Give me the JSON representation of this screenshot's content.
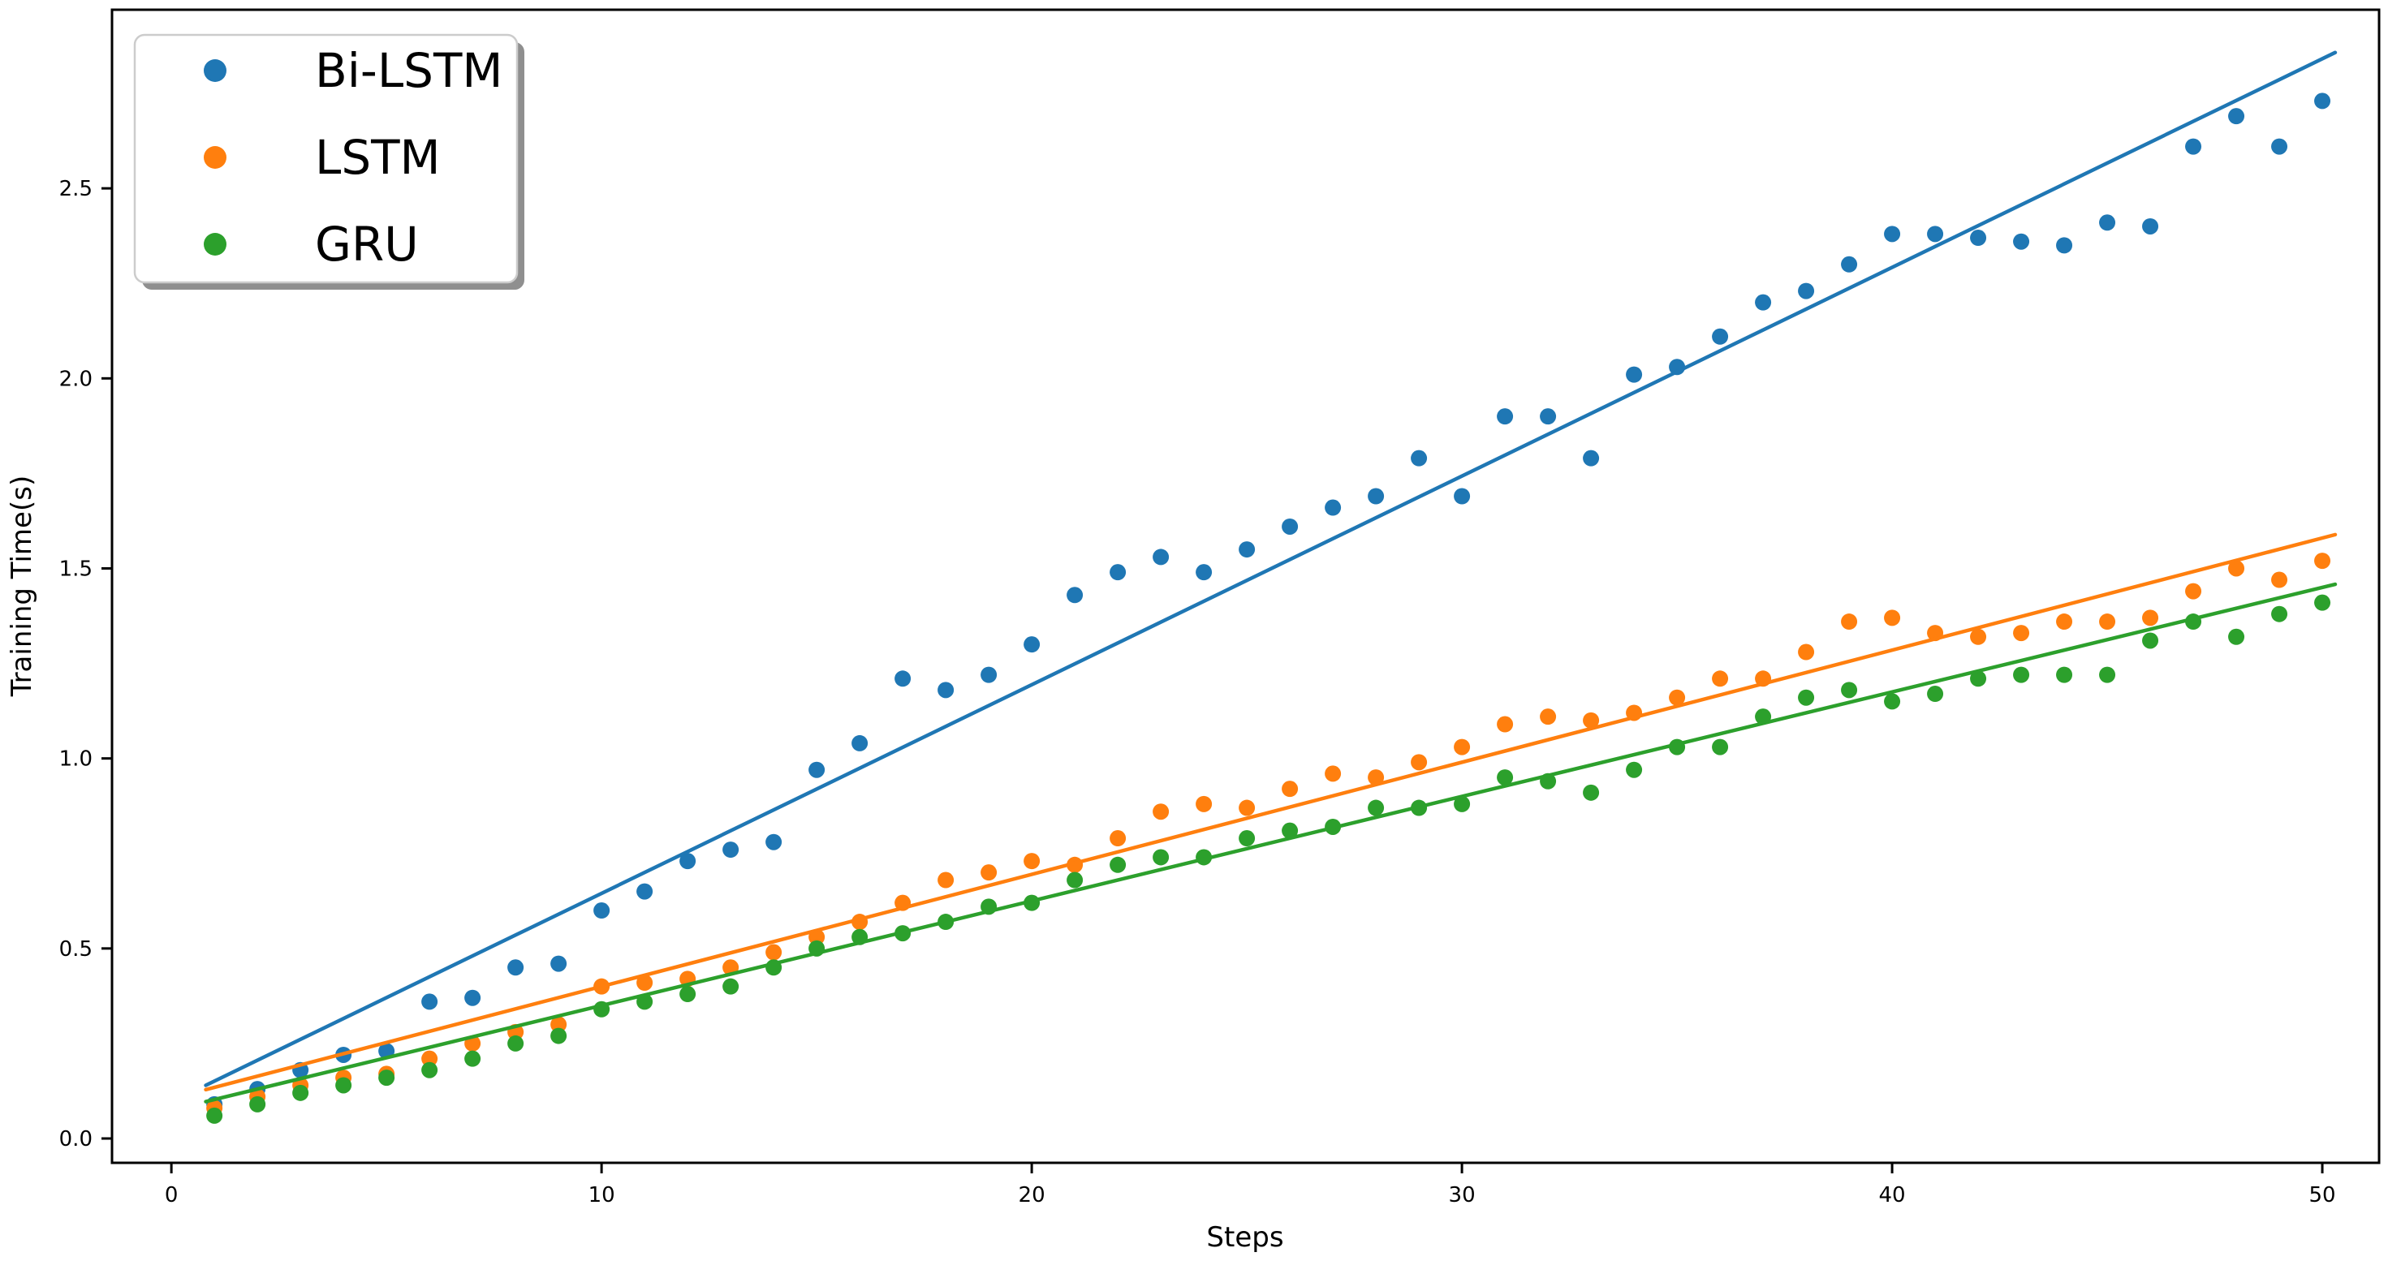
{
  "chart_data": {
    "type": "scatter",
    "xlabel": "Steps",
    "ylabel": "Training Time(s)",
    "xlim": [
      -1.38,
      51.32
    ],
    "ylim": [
      -0.064,
      2.97
    ],
    "x_ticks": [
      0,
      10,
      20,
      30,
      40,
      50
    ],
    "y_ticks": [
      0.0,
      0.5,
      1.0,
      1.5,
      2.0,
      2.5
    ],
    "grid": false,
    "legend_position": "upper left",
    "x": [
      1,
      2,
      3,
      4,
      5,
      6,
      7,
      8,
      9,
      10,
      11,
      12,
      13,
      14,
      15,
      16,
      17,
      18,
      19,
      20,
      21,
      22,
      23,
      24,
      25,
      26,
      27,
      28,
      29,
      30,
      31,
      32,
      33,
      34,
      35,
      36,
      37,
      38,
      39,
      40,
      41,
      42,
      43,
      44,
      45,
      46,
      47,
      48,
      49,
      50
    ],
    "series": [
      {
        "name": "Bi-LSTM",
        "color": "#1f77b4",
        "values": [
          0.09,
          0.13,
          0.18,
          0.22,
          0.23,
          0.36,
          0.37,
          0.45,
          0.46,
          0.6,
          0.65,
          0.73,
          0.76,
          0.78,
          0.97,
          1.04,
          1.21,
          1.18,
          1.22,
          1.3,
          1.43,
          1.49,
          1.53,
          1.49,
          1.55,
          1.61,
          1.66,
          1.69,
          1.79,
          1.69,
          1.9,
          1.9,
          1.79,
          2.01,
          2.03,
          2.11,
          2.2,
          2.23,
          2.3,
          2.38,
          2.38,
          2.37,
          2.36,
          2.35,
          2.41,
          2.4,
          2.61,
          2.69,
          2.61,
          2.73
        ],
        "trend": {
          "slope": 0.0549,
          "intercept": 0.096,
          "x_start": 0.8,
          "x_end": 50.3
        }
      },
      {
        "name": "LSTM",
        "color": "#ff7f0e",
        "values": [
          0.08,
          0.11,
          0.14,
          0.16,
          0.17,
          0.21,
          0.25,
          0.28,
          0.3,
          0.4,
          0.41,
          0.42,
          0.45,
          0.49,
          0.53,
          0.57,
          0.62,
          0.68,
          0.7,
          0.73,
          0.72,
          0.79,
          0.86,
          0.88,
          0.87,
          0.92,
          0.96,
          0.95,
          0.99,
          1.03,
          1.09,
          1.11,
          1.1,
          1.12,
          1.16,
          1.21,
          1.21,
          1.28,
          1.36,
          1.37,
          1.33,
          1.32,
          1.33,
          1.36,
          1.36,
          1.37,
          1.44,
          1.5,
          1.47,
          1.52
        ],
        "trend": {
          "slope": 0.0295,
          "intercept": 0.105,
          "x_start": 0.8,
          "x_end": 50.3
        }
      },
      {
        "name": "GRU",
        "color": "#2ca02c",
        "values": [
          0.06,
          0.09,
          0.12,
          0.14,
          0.16,
          0.18,
          0.21,
          0.25,
          0.27,
          0.34,
          0.36,
          0.38,
          0.4,
          0.45,
          0.5,
          0.53,
          0.54,
          0.57,
          0.61,
          0.62,
          0.68,
          0.72,
          0.74,
          0.74,
          0.79,
          0.81,
          0.82,
          0.87,
          0.87,
          0.88,
          0.95,
          0.94,
          0.91,
          0.97,
          1.03,
          1.03,
          1.11,
          1.16,
          1.18,
          1.15,
          1.17,
          1.21,
          1.22,
          1.22,
          1.22,
          1.31,
          1.36,
          1.32,
          1.38,
          1.41
        ],
        "trend": {
          "slope": 0.0275,
          "intercept": 0.075,
          "x_start": 0.8,
          "x_end": 50.3
        }
      }
    ]
  },
  "legend": {
    "items": [
      {
        "label": "Bi-LSTM",
        "color": "#1f77b4"
      },
      {
        "label": "LSTM",
        "color": "#ff7f0e"
      },
      {
        "label": "GRU",
        "color": "#2ca02c"
      }
    ]
  },
  "axes": {
    "xlabel": "Steps",
    "ylabel": "Training Time(s)",
    "spine_color": "#000000"
  }
}
